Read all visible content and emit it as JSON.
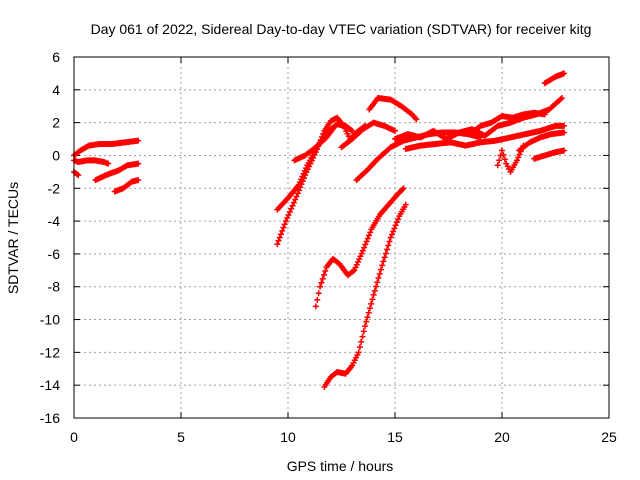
{
  "chart_data": {
    "type": "scatter",
    "title": "Day 061 of 2022, Sidereal Day-to-day VTEC variation (SDTVAR) for receiver kitg",
    "xlabel": "GPS time / hours",
    "ylabel": "SDTVAR / TECUs",
    "xlim": [
      0,
      25
    ],
    "ylim": [
      -16,
      6
    ],
    "xticks": [
      0,
      5,
      10,
      15,
      20,
      25
    ],
    "yticks": [
      -16,
      -14,
      -12,
      -10,
      -8,
      -6,
      -4,
      -2,
      0,
      2,
      4,
      6
    ],
    "grid": true,
    "marker": "+",
    "color": "#ff0000",
    "series": [
      {
        "name": "s1",
        "x": [
          0.0,
          0.3,
          0.7,
          1.2,
          1.8,
          2.4,
          3.0
        ],
        "y": [
          0.0,
          0.3,
          0.6,
          0.7,
          0.7,
          0.8,
          0.9
        ]
      },
      {
        "name": "s2",
        "x": [
          0.0,
          0.2,
          0.6,
          1.0,
          1.4,
          1.6
        ],
        "y": [
          -0.3,
          -0.4,
          -0.3,
          -0.3,
          -0.4,
          -0.5
        ]
      },
      {
        "name": "s3",
        "x": [
          0.0,
          0.2
        ],
        "y": [
          -1.0,
          -1.2
        ]
      },
      {
        "name": "s4",
        "x": [
          1.0,
          1.5,
          2.1,
          2.5,
          3.0
        ],
        "y": [
          -1.5,
          -1.2,
          -0.9,
          -0.6,
          -0.5
        ]
      },
      {
        "name": "s5",
        "x": [
          1.9,
          2.3,
          2.7,
          3.0
        ],
        "y": [
          -2.2,
          -2.0,
          -1.6,
          -1.5
        ]
      },
      {
        "name": "s6",
        "x": [
          9.5,
          9.9,
          10.4,
          10.8,
          11.3,
          11.7,
          12.0,
          12.3,
          12.6,
          12.9,
          13.2,
          13.6
        ],
        "y": [
          -5.4,
          -4.0,
          -2.5,
          -1.2,
          0.2,
          1.5,
          2.1,
          2.3,
          1.8,
          1.0,
          1.4,
          1.8
        ]
      },
      {
        "name": "s7",
        "x": [
          9.5,
          10.0,
          10.5,
          10.9,
          11.4,
          11.9,
          12.3,
          12.7,
          13.0
        ],
        "y": [
          -3.3,
          -2.6,
          -1.8,
          -0.6,
          0.6,
          1.5,
          1.9,
          1.8,
          1.5
        ]
      },
      {
        "name": "s8",
        "x": [
          10.3,
          10.8,
          11.3,
          11.8,
          12.2
        ],
        "y": [
          -0.3,
          0.0,
          0.5,
          1.1,
          1.8
        ]
      },
      {
        "name": "s9",
        "x": [
          12.5,
          13.0,
          13.5,
          14.0,
          14.5,
          15.0
        ],
        "y": [
          0.5,
          1.0,
          1.6,
          2.0,
          1.8,
          1.5
        ]
      },
      {
        "name": "s10",
        "x": [
          13.8,
          14.2,
          14.8,
          15.3,
          15.8,
          16.0
        ],
        "y": [
          2.8,
          3.5,
          3.4,
          3.0,
          2.5,
          2.2
        ]
      },
      {
        "name": "s11",
        "x": [
          13.2,
          13.7,
          14.2,
          14.8,
          15.4,
          16.0,
          16.6,
          17.2,
          17.8,
          18.4,
          19.0
        ],
        "y": [
          -1.5,
          -0.9,
          -0.2,
          0.5,
          0.9,
          1.1,
          1.3,
          1.4,
          1.4,
          1.3,
          1.1
        ]
      },
      {
        "name": "s12",
        "x": [
          15.0,
          15.6,
          16.2,
          16.8,
          17.4,
          18.0,
          18.6,
          19.2,
          19.8,
          20.4,
          21.0,
          21.6,
          22.2,
          22.8
        ],
        "y": [
          1.0,
          1.3,
          1.1,
          1.5,
          1.0,
          1.4,
          1.6,
          1.2,
          1.8,
          2.0,
          2.3,
          2.5,
          2.8,
          3.5
        ]
      },
      {
        "name": "s13",
        "x": [
          15.5,
          16.2,
          16.9,
          17.6,
          18.3,
          19.0,
          19.7,
          20.4,
          21.1,
          21.8,
          22.5,
          22.9
        ],
        "y": [
          0.4,
          0.6,
          0.7,
          0.8,
          0.6,
          0.8,
          0.9,
          1.1,
          1.3,
          1.5,
          1.8,
          1.8
        ]
      },
      {
        "name": "s14",
        "x": [
          18.5,
          19.0,
          19.5,
          20.0,
          20.5,
          21.0,
          21.5,
          22.0
        ],
        "y": [
          1.3,
          1.8,
          2.0,
          2.4,
          2.3,
          2.5,
          2.6,
          2.5
        ]
      },
      {
        "name": "s15",
        "x": [
          19.8,
          20.0,
          20.2,
          20.4,
          20.7,
          21.0
        ],
        "y": [
          -0.6,
          0.3,
          -0.5,
          -1.0,
          -0.3,
          0.6
        ]
      },
      {
        "name": "s16",
        "x": [
          20.8,
          21.3,
          21.8,
          22.3,
          22.9
        ],
        "y": [
          0.3,
          0.8,
          1.1,
          1.3,
          1.4
        ]
      },
      {
        "name": "s17",
        "x": [
          21.5,
          22.0,
          22.5,
          22.9
        ],
        "y": [
          -0.2,
          0.0,
          0.2,
          0.3
        ]
      },
      {
        "name": "s18",
        "x": [
          22.0,
          22.5,
          22.9
        ],
        "y": [
          4.4,
          4.8,
          5.0
        ]
      },
      {
        "name": "s19",
        "x": [
          11.3,
          11.5,
          11.8,
          12.1,
          12.4,
          12.8,
          13.1,
          13.5,
          13.9,
          14.3,
          14.7,
          15.1,
          15.4
        ],
        "y": [
          -9.2,
          -8.0,
          -6.8,
          -6.3,
          -6.6,
          -7.3,
          -7.0,
          -5.8,
          -4.5,
          -3.6,
          -3.0,
          -2.4,
          -2.0
        ]
      },
      {
        "name": "s20",
        "x": [
          11.7,
          12.0,
          12.3,
          12.7,
          13.0,
          13.3,
          13.6,
          14.0,
          14.4,
          14.8,
          15.2,
          15.5
        ],
        "y": [
          -14.1,
          -13.5,
          -13.2,
          -13.3,
          -12.8,
          -12.0,
          -10.4,
          -8.5,
          -6.7,
          -5.0,
          -3.7,
          -3.0
        ]
      }
    ]
  }
}
